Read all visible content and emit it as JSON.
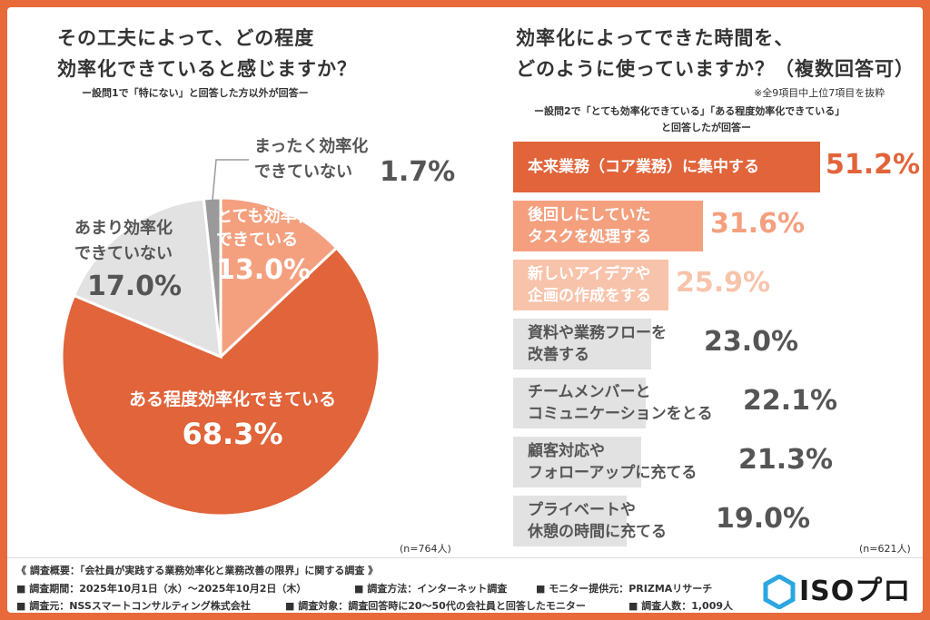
{
  "colors": {
    "frame": "#E8693A",
    "accent": "#E1643A",
    "light": "#F4A07F",
    "lighter": "#F8C3AB",
    "gray": "#E2E2E2",
    "darkgray": "#9A9A9A",
    "text": "#555555"
  },
  "left": {
    "title_line1": "その工夫によって、どの程度",
    "title_line2": "効率化できていると感じますか？",
    "subnote": "ー設問1で「特にない」と回答した方以外が回答ー",
    "n_label": "(n=764人)"
  },
  "right": {
    "title_line1": "効率化によってできた時間を、",
    "title_line2": "どのように使っていますか？（複数回答可）",
    "note_top": "※全9項目中上位7項目を抜粋",
    "subnote_line1": "ー設問2で「とても効率化できている」「ある程度効率化できている」",
    "subnote_line2": "と回答したが回答ー",
    "n_label": "(n=621人)"
  },
  "chart_data": [
    {
      "type": "pie",
      "title": "その工夫によって、どの程度効率化できていると感じますか？",
      "slices": [
        {
          "label": "とても効率化できている",
          "value": 13.0,
          "value_label": "13.0%",
          "label_lines": [
            "とても効率化",
            "できている"
          ]
        },
        {
          "label": "ある程度効率化できている",
          "value": 68.3,
          "value_label": "68.3%",
          "label_lines": [
            "ある程度効率化できている"
          ]
        },
        {
          "label": "あまり効率化できていない",
          "value": 17.0,
          "value_label": "17.0%",
          "label_lines": [
            "あまり効率化",
            "できていない"
          ]
        },
        {
          "label": "まったく効率化できていない",
          "value": 1.7,
          "value_label": "1.7%",
          "label_lines": [
            "まったく効率化",
            "できていない"
          ]
        }
      ]
    },
    {
      "type": "bar",
      "orientation": "horizontal",
      "title": "効率化によってできた時間を、どのように使っていますか？（複数回答可）",
      "categories": [
        "本来業務（コア業務）に集中する",
        "後回しにしていたタスクを処理する",
        "新しいアイデアや企画の作成をする",
        "資料や業務フローを改善する",
        "チームメンバーとコミュニケーションをとる",
        "顧客対応やフォローアップに充てる",
        "プライベートや休憩の時間に充てる"
      ],
      "category_lines": [
        [
          "本来業務（コア業務）に集中する"
        ],
        [
          "後回しにしていた",
          "タスクを処理する"
        ],
        [
          "新しいアイデアや",
          "企画の作成をする"
        ],
        [
          "資料や業務フローを",
          "改善する"
        ],
        [
          "チームメンバーと",
          "コミュニケーションをとる"
        ],
        [
          "顧客対応や",
          "フォローアップに充てる"
        ],
        [
          "プライベートや",
          "休憩の時間に充てる"
        ]
      ],
      "values": [
        51.2,
        31.6,
        25.9,
        23.0,
        22.1,
        21.3,
        19.0
      ],
      "value_labels": [
        "51.2%",
        "31.6%",
        "25.9%",
        "23.0%",
        "22.1%",
        "21.3%",
        "19.0%"
      ],
      "xlim": [
        0,
        60
      ]
    }
  ],
  "footer": {
    "line1": "《 調査概要：「会社員が実践する業務効率化と業務改善の限界」に関する調査 》",
    "period": "■ 調査期間：2025年10月1日（水）〜2025年10月2日（木）",
    "method": "■ 調査方法：インターネット調査",
    "provider": "■ モニター提供元：PRIZMAリサーチ",
    "source": "■ 調査元：NSSスマートコンサルティング株式会社",
    "target": "■ 調査対象：調査回答時に20〜50代の会社員と回答したモニター",
    "count": "■ 調査人数：1,009人"
  },
  "logo": {
    "text": "ISOプロ"
  }
}
